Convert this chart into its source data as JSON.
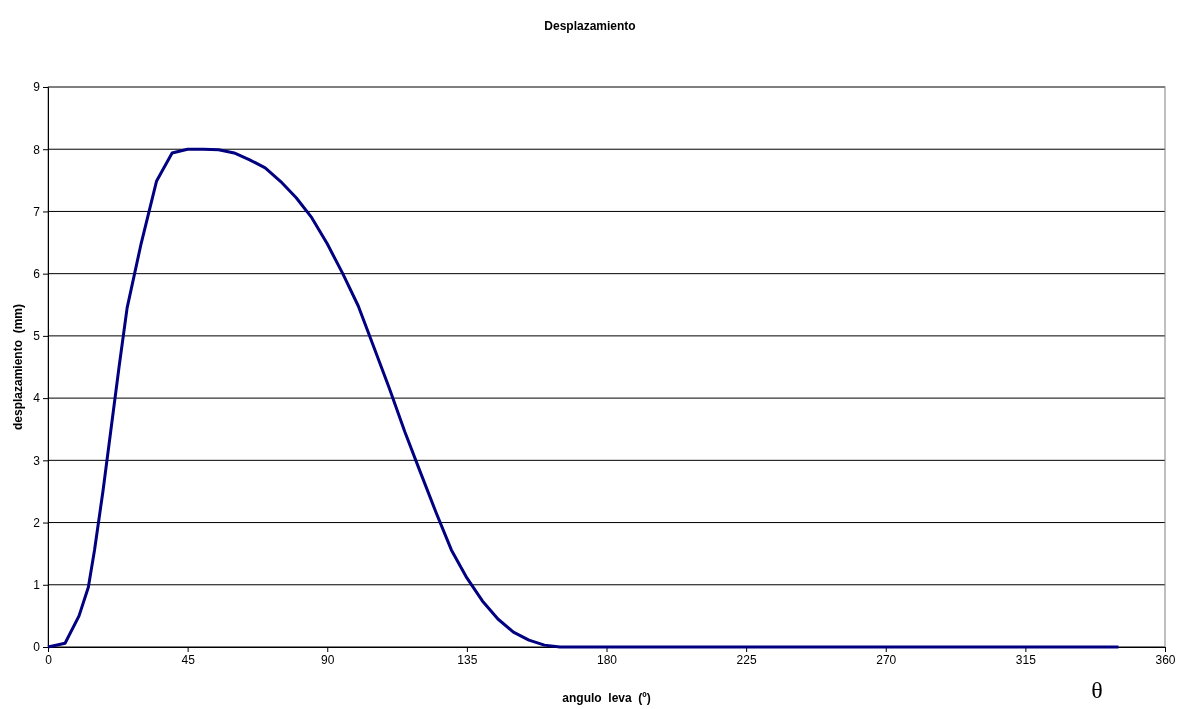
{
  "chart_data": {
    "type": "line",
    "title": "Desplazamiento",
    "xlabel": "angulo  leva  (º)",
    "ylabel": "desplazamiento  (mm)",
    "annotations": [
      "θ"
    ],
    "xlim": [
      0,
      360
    ],
    "xticks": [
      0,
      45,
      90,
      135,
      180,
      225,
      270,
      315,
      360
    ],
    "ylim": [
      0,
      9
    ],
    "yticks": [
      0,
      1,
      2,
      3,
      4,
      5,
      6,
      7,
      8,
      9
    ],
    "grid": "y",
    "marker": "none",
    "line_style": "solid",
    "series": [
      {
        "color": "#000080",
        "x": [
          0,
          5.5,
          10,
          13,
          15,
          17.7,
          20.3,
          22.9,
          25.5,
          30,
          35,
          40,
          45,
          50,
          55,
          60,
          65,
          70,
          75,
          80,
          85,
          90,
          95,
          100,
          105,
          110,
          115,
          120,
          125,
          130,
          135,
          140,
          145,
          150,
          155,
          160,
          165,
          180,
          225,
          270,
          315,
          345
        ],
        "values": [
          0,
          0.06,
          0.5,
          0.96,
          1.56,
          2.5,
          3.5,
          4.5,
          5.45,
          6.48,
          7.49,
          7.94,
          8.0,
          8.0,
          7.99,
          7.94,
          7.83,
          7.7,
          7.48,
          7.22,
          6.9,
          6.48,
          6.0,
          5.48,
          4.82,
          4.16,
          3.46,
          2.81,
          2.17,
          1.56,
          1.11,
          0.74,
          0.45,
          0.24,
          0.11,
          0.03,
          0,
          0,
          0,
          0,
          0,
          0
        ]
      }
    ]
  }
}
